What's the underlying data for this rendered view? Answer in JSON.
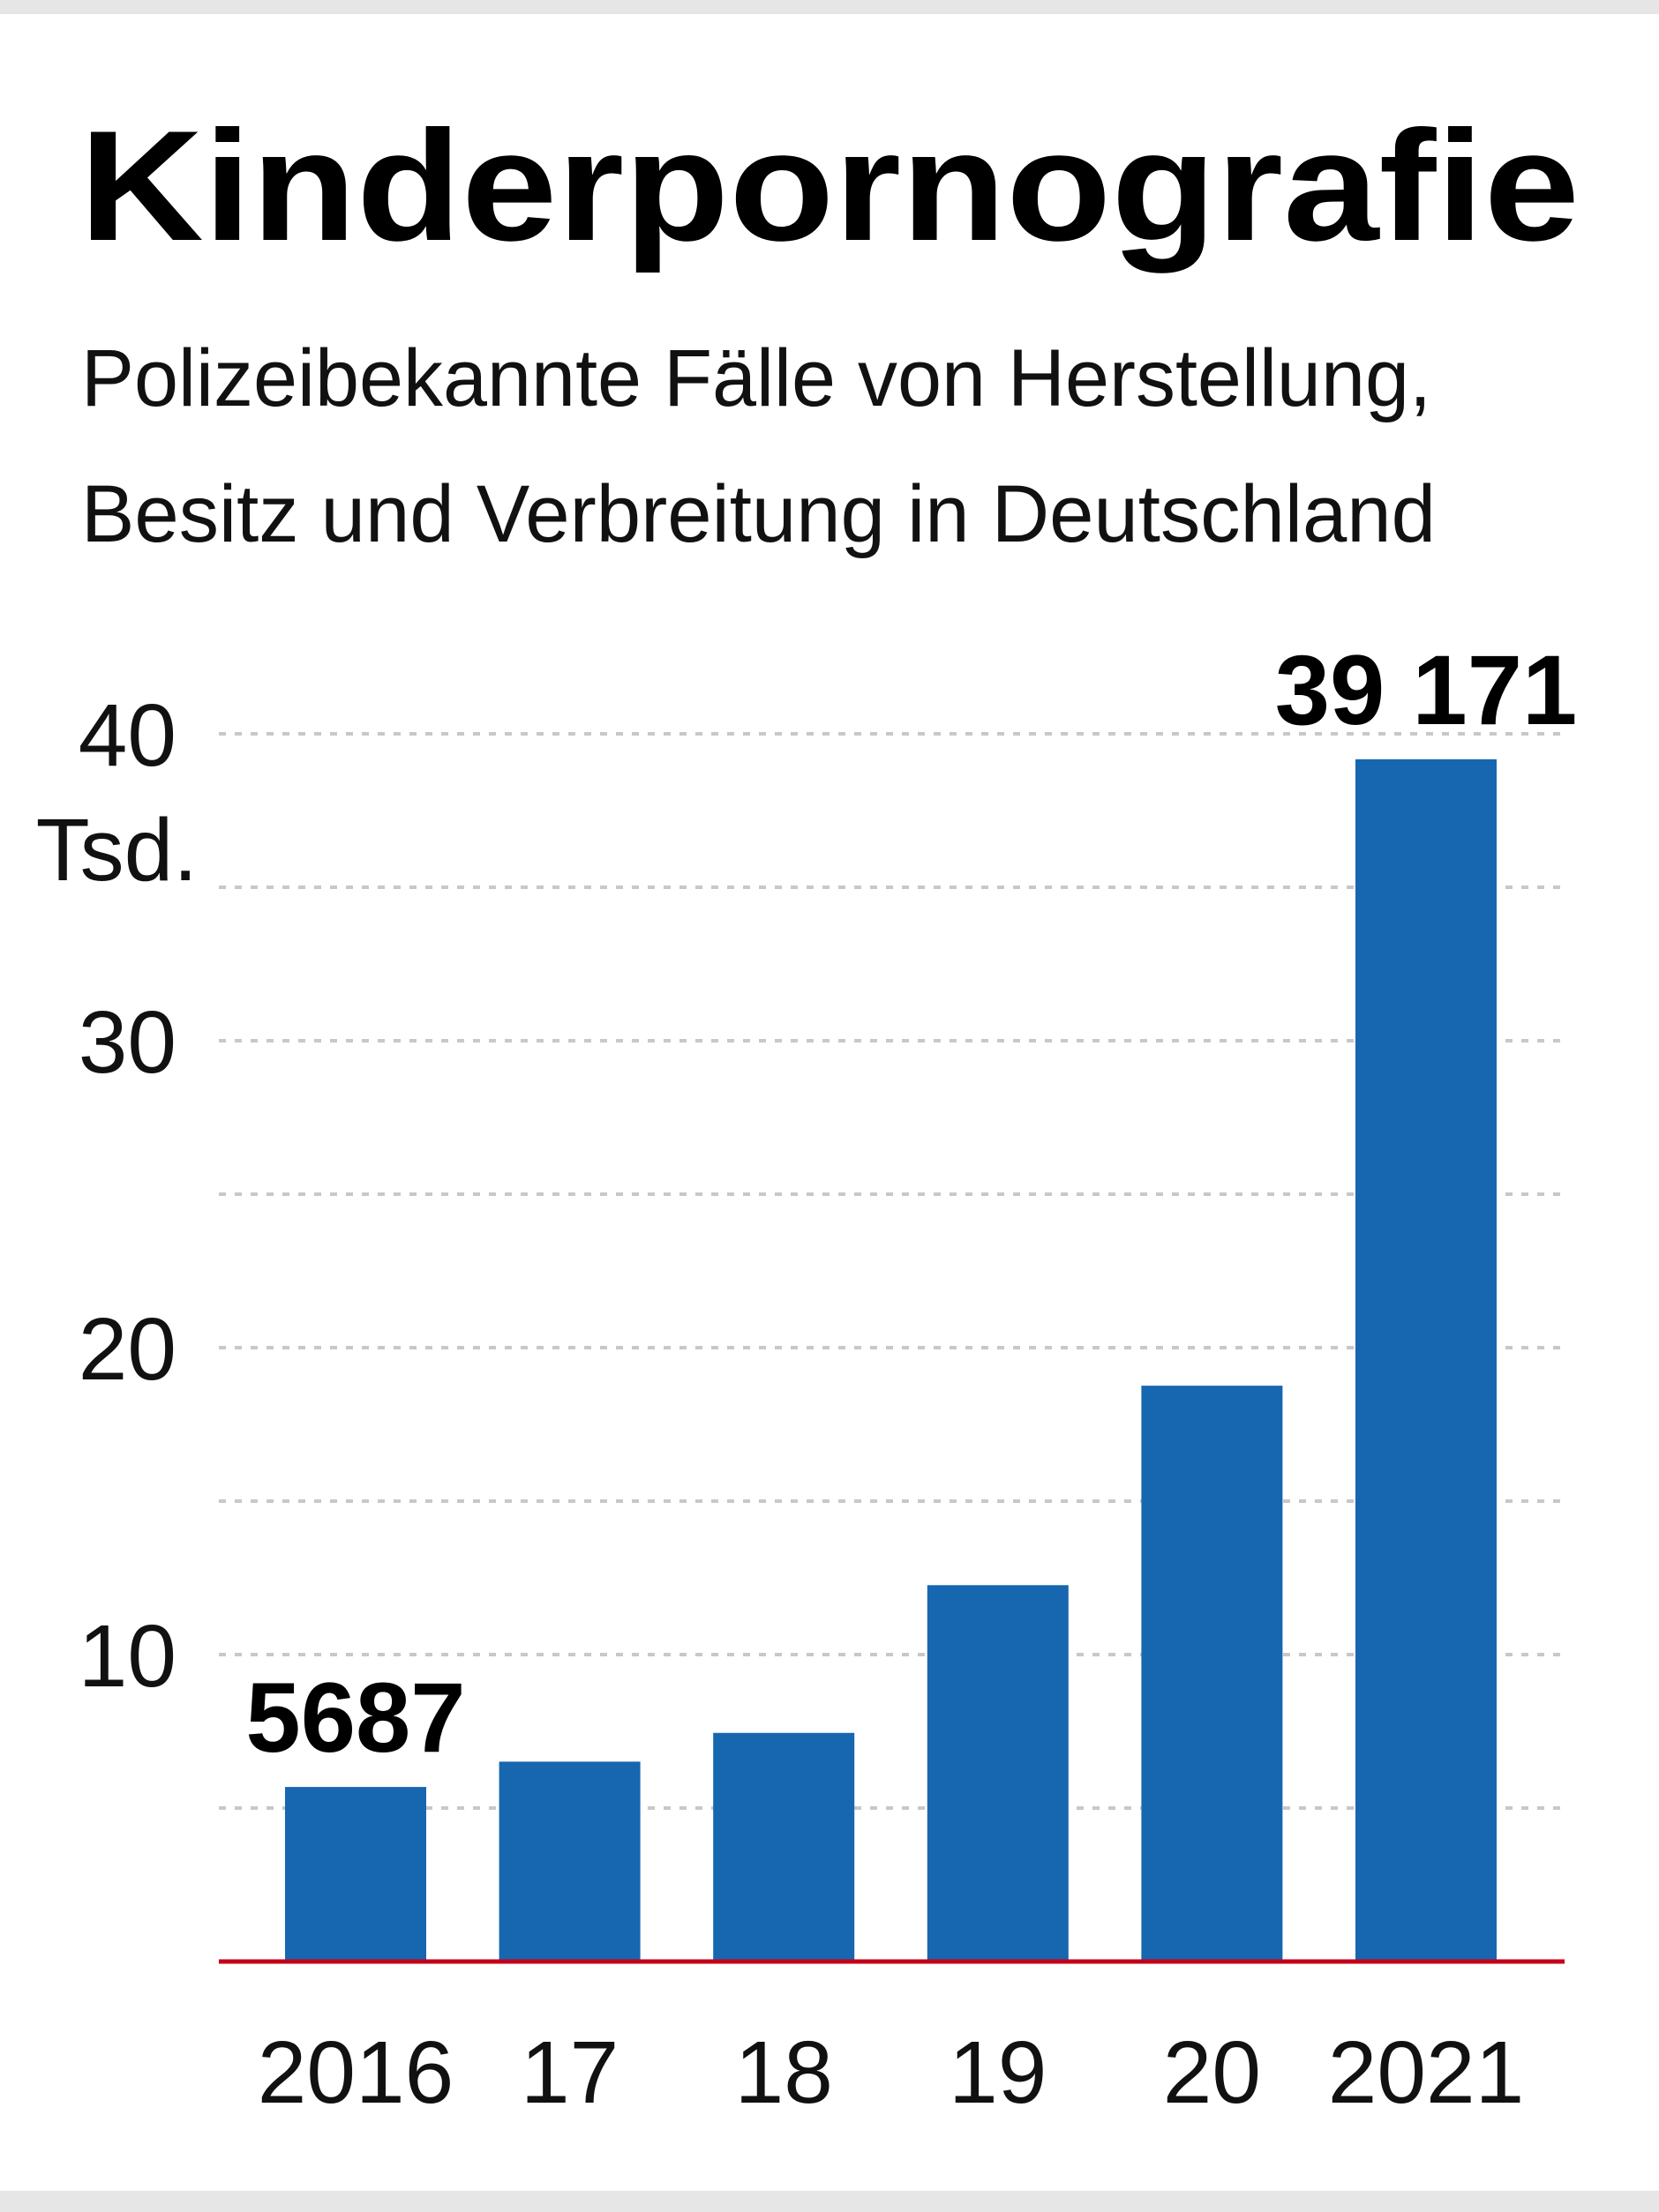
{
  "colors": {
    "bar": "#1766b0",
    "baseline": "#c4001a",
    "grid": "#c8c8c8",
    "frame": "#e6e6e6"
  },
  "chart_data": {
    "type": "bar",
    "title": "Kinderpornografie",
    "subtitle": [
      "Polizeibekannte Fälle von Herstellung,",
      "Besitz und Verbreitung in Deutschland"
    ],
    "categories": [
      "2016",
      "17",
      "18",
      "19",
      "20",
      "2021"
    ],
    "values": [
      5687,
      6512,
      7449,
      12262,
      18761,
      39171
    ],
    "data_labels": [
      {
        "index": 0,
        "text": "5687"
      },
      {
        "index": 5,
        "text": "39 171"
      }
    ],
    "yunit": "Tsd.",
    "yticks": [
      {
        "value": 10000,
        "label": "10"
      },
      {
        "value": 20000,
        "label": "20"
      },
      {
        "value": 30000,
        "label": "30"
      },
      {
        "value": 40000,
        "label": "40"
      }
    ],
    "ylim": [
      0,
      40000
    ],
    "grid": true,
    "grid_step": 5000
  }
}
